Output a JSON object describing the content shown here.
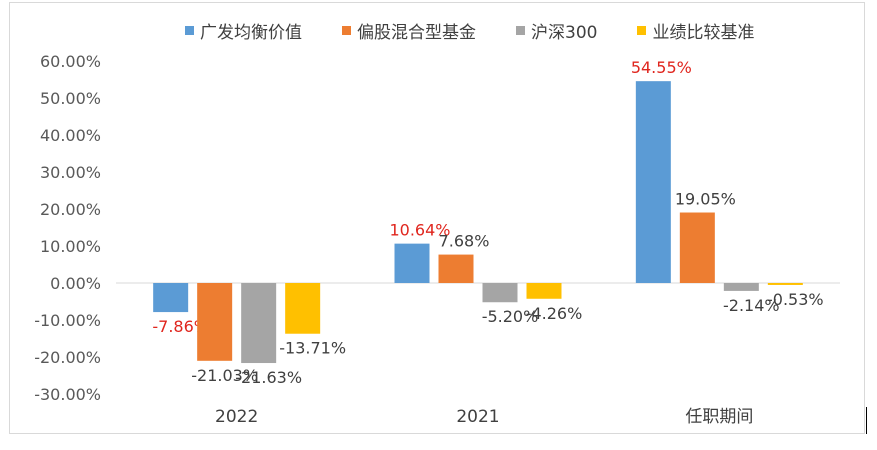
{
  "chart_data": {
    "type": "bar",
    "categories": [
      "2022",
      "2021",
      "任职期间"
    ],
    "series": [
      {
        "name": "广发均衡价值",
        "color": "#5b9bd5",
        "values": [
          -7.86,
          10.64,
          54.55
        ],
        "labels": [
          "-7.86%",
          "10.64%",
          "54.55%"
        ],
        "label_color": "#e0261e"
      },
      {
        "name": "偏股混合型基金",
        "color": "#ed7d31",
        "values": [
          -21.03,
          7.68,
          19.05
        ],
        "labels": [
          "-21.03%",
          "7.68%",
          "19.05%"
        ],
        "label_color": "#404040"
      },
      {
        "name": "沪深300",
        "color": "#a5a5a5",
        "values": [
          -21.63,
          -5.2,
          -2.14
        ],
        "labels": [
          "-21.63%",
          "-5.20%",
          "-2.14%"
        ],
        "label_color": "#404040"
      },
      {
        "name": "业绩比较基准",
        "color": "#ffc000",
        "values": [
          -13.71,
          -4.26,
          -0.53
        ],
        "labels": [
          "-13.71%",
          "-4.26%",
          "-0.53%"
        ],
        "label_color": "#404040"
      }
    ],
    "ylim": [
      -30,
      60
    ],
    "yticks": [
      "60.00%",
      "50.00%",
      "40.00%",
      "30.00%",
      "20.00%",
      "10.00%",
      "0.00%",
      "-10.00%",
      "-20.00%",
      "-30.00%"
    ],
    "ytick_values": [
      60,
      50,
      40,
      30,
      20,
      10,
      0,
      -10,
      -20,
      -30
    ],
    "legend_position": "top",
    "grid": false
  }
}
